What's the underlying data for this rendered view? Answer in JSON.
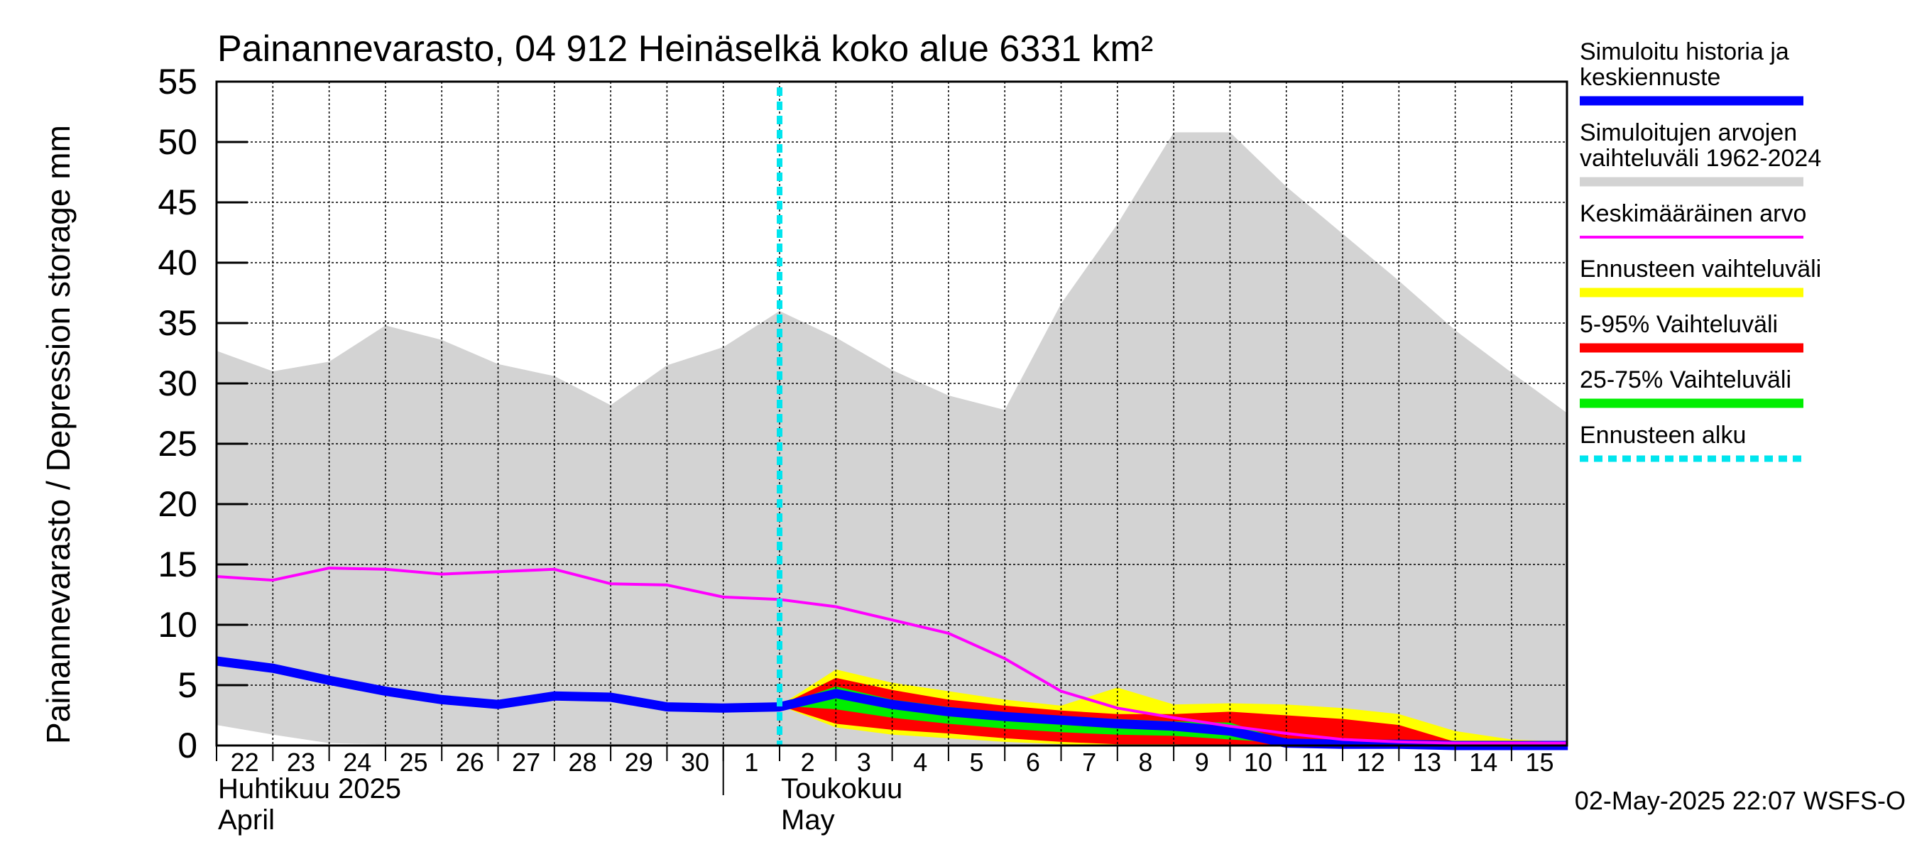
{
  "chart_data": {
    "type": "area",
    "title": "Painannevarasto, 04 912 Heinäselkä koko alue 6331 km²",
    "ylabel": "Painannevarasto / Depression storage    mm",
    "ylim": [
      0,
      55
    ],
    "yticks": [
      0,
      5,
      10,
      15,
      20,
      25,
      30,
      35,
      40,
      45,
      50,
      55
    ],
    "grid": true,
    "legend_position": "right",
    "x_dates": [
      "2025-04-22",
      "2025-04-23",
      "2025-04-24",
      "2025-04-25",
      "2025-04-26",
      "2025-04-27",
      "2025-04-28",
      "2025-04-29",
      "2025-04-30",
      "2025-05-01",
      "2025-05-02",
      "2025-05-03",
      "2025-05-04",
      "2025-05-05",
      "2025-05-06",
      "2025-05-07",
      "2025-05-08",
      "2025-05-09",
      "2025-05-10",
      "2025-05-11",
      "2025-05-12",
      "2025-05-13",
      "2025-05-14",
      "2025-05-15",
      "2025-05-16"
    ],
    "x_tick_labels": [
      "22",
      "23",
      "24",
      "25",
      "26",
      "27",
      "28",
      "29",
      "30",
      "1",
      "2",
      "3",
      "4",
      "5",
      "6",
      "7",
      "8",
      "9",
      "10",
      "11",
      "12",
      "13",
      "14",
      "15"
    ],
    "month_labels": [
      {
        "fi": "Huhtikuu  2025",
        "en": "April",
        "at": "2025-04-22"
      },
      {
        "fi": "Toukokuu",
        "en": "May",
        "at": "2025-05-02"
      }
    ],
    "forecast_start": "2025-05-02",
    "series": [
      {
        "name": "Simuloitujen arvojen vaihteluväli 1962-2024",
        "kind": "band",
        "color": "#d3d3d3",
        "x": [
          "2025-04-22",
          "2025-04-23",
          "2025-04-24",
          "2025-04-25",
          "2025-04-26",
          "2025-04-27",
          "2025-04-28",
          "2025-04-29",
          "2025-04-30",
          "2025-05-01",
          "2025-05-02",
          "2025-05-03",
          "2025-05-04",
          "2025-05-05",
          "2025-05-06",
          "2025-05-07",
          "2025-05-08",
          "2025-05-09",
          "2025-05-10",
          "2025-05-11",
          "2025-05-12",
          "2025-05-13",
          "2025-05-14",
          "2025-05-15",
          "2025-05-16"
        ],
        "upper": [
          32.7,
          31.0,
          31.8,
          34.8,
          33.6,
          31.6,
          30.6,
          28.2,
          31.5,
          33.0,
          36.0,
          33.8,
          31.1,
          29.0,
          27.8,
          36.6,
          43.2,
          50.8,
          50.8,
          46.3,
          42.4,
          38.5,
          34.4,
          30.9,
          27.5
        ],
        "lower": [
          1.7,
          0.9,
          0.2,
          0.1,
          0.0,
          0.0,
          0.0,
          0.0,
          0.0,
          0.0,
          0.0,
          0.0,
          0.0,
          0.0,
          0.0,
          0.0,
          0.0,
          0.0,
          0.0,
          0.0,
          0.0,
          0.0,
          0.0,
          0.0,
          0.0
        ]
      },
      {
        "name": "Ennusteen vaihteluväli",
        "kind": "band",
        "color": "#ffff00",
        "x": [
          "2025-05-02",
          "2025-05-03",
          "2025-05-04",
          "2025-05-05",
          "2025-05-06",
          "2025-05-07",
          "2025-05-08",
          "2025-05-09",
          "2025-05-10",
          "2025-05-11",
          "2025-05-12",
          "2025-05-13",
          "2025-05-14",
          "2025-05-15",
          "2025-05-16"
        ],
        "upper": [
          3.3,
          6.3,
          5.2,
          4.5,
          3.8,
          3.3,
          4.8,
          3.4,
          3.5,
          3.4,
          3.1,
          2.6,
          1.2,
          0.5,
          0.3
        ],
        "lower": [
          3.3,
          1.5,
          0.9,
          0.6,
          0.3,
          0.1,
          0.0,
          0.0,
          0.0,
          0.0,
          0.0,
          0.0,
          0.0,
          0.0,
          0.0
        ]
      },
      {
        "name": "5-95% Vaihteluväli",
        "kind": "band",
        "color": "#ff0000",
        "x": [
          "2025-05-02",
          "2025-05-03",
          "2025-05-04",
          "2025-05-05",
          "2025-05-06",
          "2025-05-07",
          "2025-05-08",
          "2025-05-09",
          "2025-05-10",
          "2025-05-11",
          "2025-05-12",
          "2025-05-13",
          "2025-05-14",
          "2025-05-15",
          "2025-05-16"
        ],
        "upper": [
          3.3,
          5.6,
          4.6,
          3.8,
          3.3,
          2.9,
          2.6,
          2.6,
          2.8,
          2.5,
          2.2,
          1.7,
          0.3,
          0.3,
          0.2
        ],
        "lower": [
          3.3,
          1.8,
          1.3,
          1.0,
          0.6,
          0.3,
          0.1,
          0.1,
          0.0,
          0.0,
          0.0,
          0.0,
          0.0,
          0.0,
          0.0
        ]
      },
      {
        "name": "25-75% Vaihteluväli",
        "kind": "band",
        "color": "#00ee00",
        "x": [
          "2025-05-02",
          "2025-05-03",
          "2025-05-04",
          "2025-05-05",
          "2025-05-06",
          "2025-05-07",
          "2025-05-08",
          "2025-05-09",
          "2025-05-10",
          "2025-05-11"
        ],
        "upper": [
          3.3,
          4.9,
          3.8,
          3.2,
          2.7,
          2.4,
          2.2,
          2.0,
          1.9,
          0.4
        ],
        "lower": [
          3.3,
          3.0,
          2.3,
          1.8,
          1.4,
          1.1,
          0.9,
          0.8,
          0.5,
          0.2
        ]
      },
      {
        "name": "Simuloitu historia ja keskiennuste",
        "kind": "line",
        "color": "#0000ff",
        "x": [
          "2025-04-22",
          "2025-04-23",
          "2025-04-24",
          "2025-04-25",
          "2025-04-26",
          "2025-04-27",
          "2025-04-28",
          "2025-04-29",
          "2025-04-30",
          "2025-05-01",
          "2025-05-02",
          "2025-05-03",
          "2025-05-04",
          "2025-05-05",
          "2025-05-06",
          "2025-05-07",
          "2025-05-08",
          "2025-05-09",
          "2025-05-10",
          "2025-05-11",
          "2025-05-12",
          "2025-05-13",
          "2025-05-14",
          "2025-05-15",
          "2025-05-16"
        ],
        "values": [
          7.0,
          6.4,
          5.4,
          4.5,
          3.8,
          3.4,
          4.1,
          4.0,
          3.2,
          3.1,
          3.2,
          4.3,
          3.4,
          2.8,
          2.4,
          2.1,
          1.8,
          1.6,
          1.2,
          0.2,
          0.1,
          0.1,
          0.0,
          0.0,
          0.0
        ]
      },
      {
        "name": "Keskimääräinen arvo",
        "kind": "line",
        "color": "#ff00ff",
        "x": [
          "2025-04-22",
          "2025-04-23",
          "2025-04-24",
          "2025-04-25",
          "2025-04-26",
          "2025-04-27",
          "2025-04-28",
          "2025-04-29",
          "2025-04-30",
          "2025-05-01",
          "2025-05-02",
          "2025-05-03",
          "2025-05-04",
          "2025-05-05",
          "2025-05-06",
          "2025-05-07",
          "2025-05-08",
          "2025-05-09",
          "2025-05-10",
          "2025-05-11",
          "2025-05-12",
          "2025-05-13",
          "2025-05-14",
          "2025-05-15",
          "2025-05-16"
        ],
        "values": [
          14.0,
          13.7,
          14.7,
          14.6,
          14.2,
          14.4,
          14.6,
          13.4,
          13.3,
          12.3,
          12.1,
          11.5,
          10.4,
          9.3,
          7.2,
          4.5,
          3.1,
          2.3,
          1.6,
          1.0,
          0.5,
          0.3,
          0.2,
          0.2,
          0.2
        ]
      }
    ],
    "legend": [
      {
        "label": "Simuloitu historia ja keskiennuste",
        "color": "#0000ff",
        "style": "solid-thick"
      },
      {
        "label": "Simuloitujen arvojen vaihteluväli 1962-2024",
        "color": "#d3d3d3",
        "style": "solid-thick"
      },
      {
        "label": "Keskimääräinen arvo",
        "color": "#ff00ff",
        "style": "solid-thin"
      },
      {
        "label": "Ennusteen vaihteluväli",
        "color": "#ffff00",
        "style": "solid-thick"
      },
      {
        "label": "5-95% Vaihteluväli",
        "color": "#ff0000",
        "style": "solid-thick"
      },
      {
        "label": "25-75% Vaihteluväli",
        "color": "#00ee00",
        "style": "solid-thick"
      },
      {
        "label": "Ennusteen alku",
        "color": "#00e5ee",
        "style": "dotted-thick"
      }
    ],
    "footer": "02-May-2025 22:07 WSFS-O"
  }
}
